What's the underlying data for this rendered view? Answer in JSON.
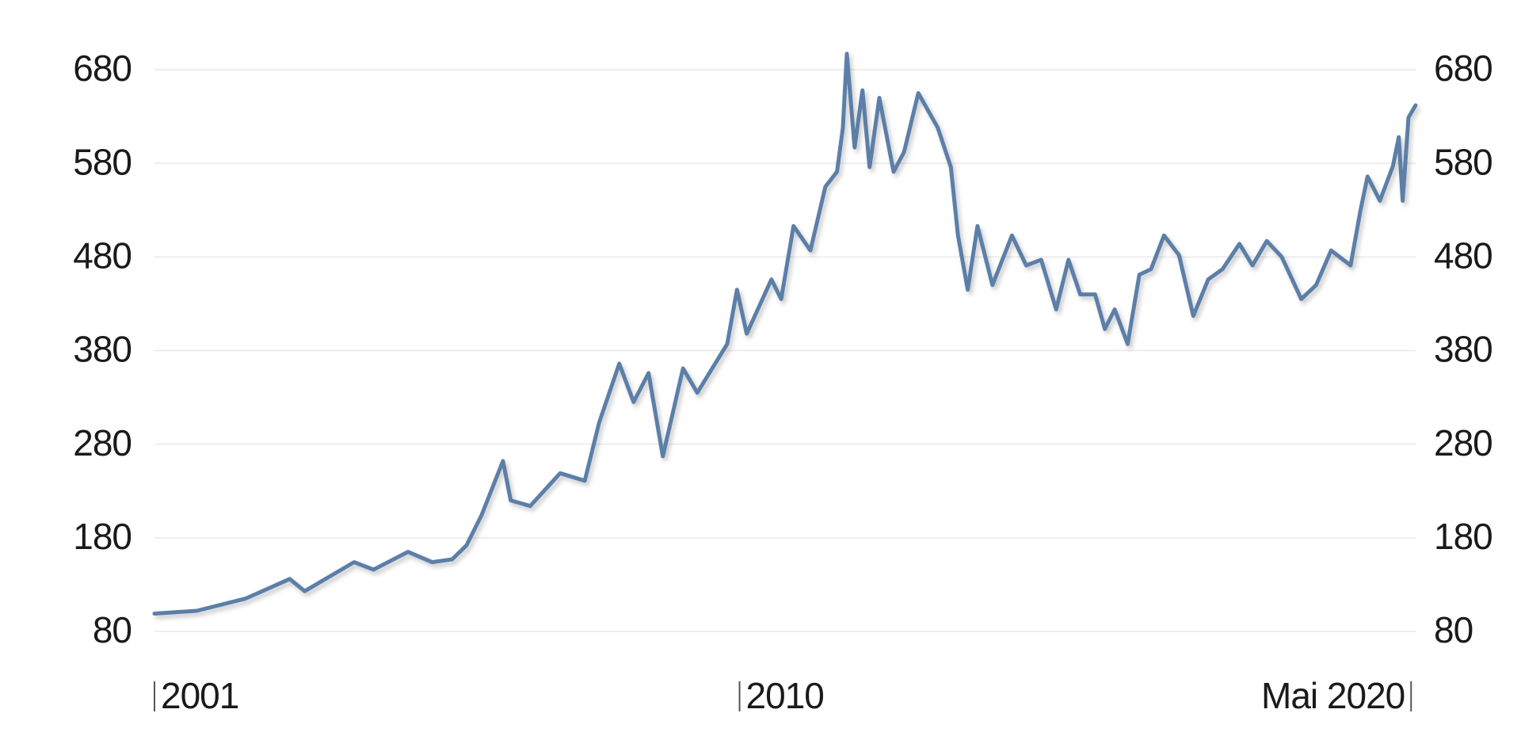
{
  "chart_data": {
    "type": "line",
    "x": [
      2001.0,
      2001.65,
      2002.4,
      2003.08,
      2003.31,
      2004.07,
      2004.37,
      2004.9,
      2005.27,
      2005.58,
      2005.8,
      2006.03,
      2006.36,
      2006.48,
      2006.78,
      2007.24,
      2007.62,
      2007.84,
      2008.15,
      2008.37,
      2008.6,
      2008.82,
      2009.13,
      2009.35,
      2009.81,
      2009.96,
      2010.11,
      2010.49,
      2010.64,
      2010.83,
      2011.09,
      2011.32,
      2011.5,
      2011.59,
      2011.65,
      2011.77,
      2011.89,
      2012.0,
      2012.15,
      2012.37,
      2012.53,
      2012.75,
      2013.05,
      2013.25,
      2013.36,
      2013.51,
      2013.66,
      2013.89,
      2014.19,
      2014.41,
      2014.64,
      2014.87,
      2015.06,
      2015.24,
      2015.47,
      2015.62,
      2015.77,
      2015.97,
      2016.15,
      2016.33,
      2016.53,
      2016.76,
      2016.98,
      2017.21,
      2017.43,
      2017.69,
      2017.89,
      2018.11,
      2018.34,
      2018.64,
      2018.87,
      2019.1,
      2019.4,
      2019.55,
      2019.66,
      2019.85,
      2020.05,
      2020.14,
      2020.2,
      2020.29,
      2020.4
    ],
    "series": [
      {
        "color": "#5b7fa8",
        "values": [
          99,
          102,
          115,
          136,
          123,
          154,
          146,
          165,
          154,
          157,
          172,
          204,
          262,
          220,
          214,
          249,
          241,
          303,
          366,
          325,
          356,
          267,
          361,
          335,
          387,
          445,
          398,
          456,
          435,
          513,
          487,
          555,
          571,
          618,
          697,
          597,
          658,
          576,
          650,
          571,
          592,
          655,
          618,
          576,
          503,
          445,
          513,
          450,
          503,
          471,
          477,
          424,
          477,
          440,
          440,
          403,
          424,
          387,
          461,
          467,
          503,
          482,
          417,
          456,
          467,
          494,
          471,
          497,
          480,
          435,
          450,
          487,
          471,
          529,
          566,
          540,
          577,
          608,
          540,
          629,
          642
        ]
      }
    ],
    "xlim": [
      2001,
      2020.4
    ],
    "xticks": [
      {
        "value": 2001,
        "label": "2001"
      },
      {
        "value": 2010,
        "label": "2010"
      },
      {
        "value": 2020.33,
        "label": "Mai 2020"
      }
    ],
    "ylim": [
      80,
      680
    ],
    "yticks": [
      80,
      180,
      280,
      380,
      480,
      580,
      680
    ],
    "grid": true,
    "right_axis": true
  }
}
